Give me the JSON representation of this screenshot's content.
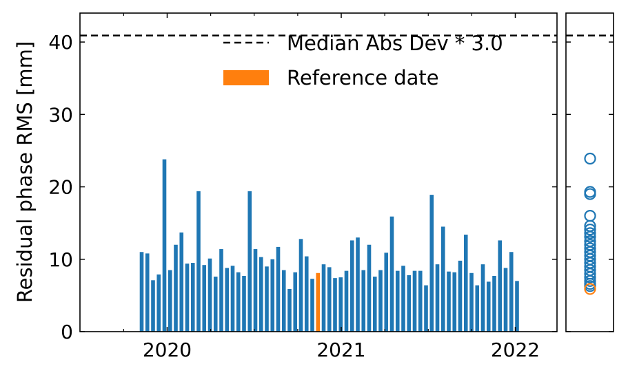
{
  "chart_data": [
    {
      "type": "bar",
      "ylabel": "Residual phase RMS [mm]",
      "ylim": [
        0,
        44
      ],
      "y_ticks": [
        0,
        10,
        20,
        30,
        40
      ],
      "x_ticks": [
        "2020",
        "2021",
        "2022"
      ],
      "grid": false,
      "legend_position": "top-right",
      "legend": [
        {
          "label": "Median Abs Dev * 3.0",
          "style": "dashed-line",
          "color": "#000000"
        },
        {
          "label": "Reference date",
          "style": "bar",
          "color": "#ff7f0e"
        }
      ],
      "threshold": 40.9,
      "series_color": "#1f77b4",
      "reference_color": "#ff7f0e",
      "reference_index": 31,
      "values": [
        11.0,
        10.8,
        7.1,
        7.9,
        23.8,
        8.5,
        12.0,
        13.7,
        9.4,
        9.5,
        19.4,
        9.2,
        10.1,
        7.6,
        11.4,
        8.8,
        9.1,
        8.2,
        7.7,
        19.4,
        11.4,
        10.3,
        9.0,
        10.0,
        11.7,
        8.5,
        5.9,
        8.2,
        12.8,
        10.4,
        7.3,
        8.1,
        9.3,
        8.9,
        7.4,
        7.5,
        8.4,
        12.6,
        13.0,
        8.5,
        12.0,
        7.6,
        8.5,
        10.9,
        15.9,
        8.4,
        9.1,
        7.8,
        8.4,
        8.4,
        6.4,
        18.9,
        9.3,
        14.5,
        8.3,
        8.2,
        9.8,
        13.4,
        8.1,
        6.4,
        9.3,
        6.9,
        7.7,
        12.6,
        8.8,
        11.0,
        7.0
      ]
    },
    {
      "type": "scatter",
      "ylim": [
        0,
        44
      ],
      "values": [
        23.9,
        19.3,
        19.0,
        16.0,
        14.6,
        14.1,
        13.6,
        13.1,
        12.5,
        12.0,
        11.5,
        11.0,
        10.5,
        10.0,
        9.5,
        9.0,
        8.5,
        8.0,
        7.5,
        7.0,
        6.6,
        6.3
      ],
      "highlight_value": 5.9,
      "marker": "open-circle"
    }
  ]
}
